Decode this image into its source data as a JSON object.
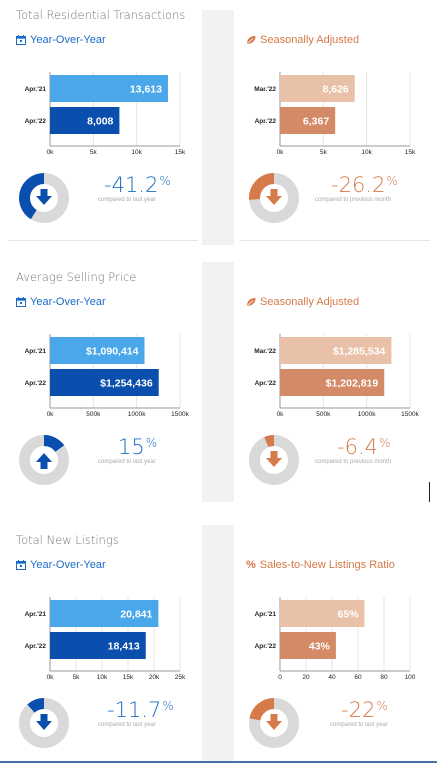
{
  "sections": [
    {
      "title": "Total Residential Transactions",
      "left": {
        "subtitle": "Year-Over-Year",
        "icon": "calendar-icon",
        "chart": {
          "type": "bar",
          "orientation": "horizontal",
          "categories": [
            "Apr.'21",
            "Apr.'22"
          ],
          "values": [
            13613,
            8008
          ],
          "labels": [
            "13,613",
            "8,008"
          ],
          "xticks": [
            "0k",
            "5k",
            "10k",
            "15k"
          ],
          "xlim": [
            0,
            15000
          ]
        },
        "percent": "-41.2",
        "percent_sign": "%",
        "direction": "down",
        "gauge_fraction": 0.412,
        "caption": "compared to last year"
      },
      "right": {
        "subtitle": "Seasonally Adjusted",
        "icon": "leaf-icon",
        "chart": {
          "type": "bar",
          "orientation": "horizontal",
          "categories": [
            "Mar.'22",
            "Apr.'22"
          ],
          "values": [
            8626,
            6367
          ],
          "labels": [
            "8,626",
            "6,367"
          ],
          "xticks": [
            "0k",
            "5k",
            "10k",
            "15k"
          ],
          "xlim": [
            0,
            15000
          ]
        },
        "percent": "-26.2",
        "percent_sign": "%",
        "direction": "down",
        "gauge_fraction": 0.262,
        "caption": "compared to previous month"
      }
    },
    {
      "title": "Average Selling Price",
      "left": {
        "subtitle": "Year-Over-Year",
        "icon": "calendar-icon",
        "chart": {
          "type": "bar",
          "orientation": "horizontal",
          "categories": [
            "Apr.'21",
            "Apr.'22"
          ],
          "values": [
            1090414,
            1254436
          ],
          "labels": [
            "$1,090,414",
            "$1,254,436"
          ],
          "xticks": [
            "0k",
            "500k",
            "1000k",
            "1500k"
          ],
          "xlim": [
            0,
            1500000
          ]
        },
        "percent": "15",
        "percent_sign": "%",
        "direction": "up",
        "gauge_fraction": 0.15,
        "caption": "compared to last year"
      },
      "right": {
        "subtitle": "Seasonally Adjusted",
        "icon": "leaf-icon",
        "chart": {
          "type": "bar",
          "orientation": "horizontal",
          "categories": [
            "Mar.'22",
            "Apr.'22"
          ],
          "values": [
            1285534,
            1202819
          ],
          "labels": [
            "$1,285,534",
            "$1,202,819"
          ],
          "xticks": [
            "0k",
            "500k",
            "1000k",
            "1500k"
          ],
          "xlim": [
            0,
            1500000
          ]
        },
        "percent": "-6.4",
        "percent_sign": "%",
        "direction": "down",
        "gauge_fraction": 0.064,
        "caption": "compared to previous month"
      }
    },
    {
      "title": "Total New Listings",
      "left": {
        "subtitle": "Year-Over-Year",
        "icon": "calendar-icon",
        "chart": {
          "type": "bar",
          "orientation": "horizontal",
          "categories": [
            "Apr.'21",
            "Apr.'22"
          ],
          "values": [
            20841,
            18413
          ],
          "labels": [
            "20,841",
            "18,413"
          ],
          "xticks": [
            "0k",
            "5k",
            "10k",
            "15k",
            "20k",
            "25k"
          ],
          "xlim": [
            0,
            25000
          ]
        },
        "percent": "-11.7",
        "percent_sign": "%",
        "direction": "down",
        "gauge_fraction": 0.117,
        "caption": "compared to last year"
      },
      "right": {
        "subtitle": "Sales-to-New Listings Ratio",
        "icon": "percent-icon",
        "chart": {
          "type": "bar",
          "orientation": "horizontal",
          "categories": [
            "Apr.'21",
            "Apr.'22"
          ],
          "values": [
            65,
            43
          ],
          "labels": [
            "65%",
            "43%"
          ],
          "xticks": [
            "0",
            "20",
            "40",
            "60",
            "80",
            "100"
          ],
          "xlim": [
            0,
            100
          ]
        },
        "percent": "-22",
        "percent_sign": "%",
        "direction": "down",
        "gauge_fraction": 0.22,
        "caption": "compared to last year"
      }
    }
  ],
  "colors": {
    "blue_dark": "#0a4fae",
    "blue_light": "#4aa8ea",
    "blue_text": "#1a6cc6",
    "orange_dark": "#d48a66",
    "orange_light": "#e9c0a8",
    "orange_text": "#d67a4a",
    "gauge_bg": "#d9d9d9"
  },
  "chart_data": [
    {
      "type": "bar",
      "title": "Total Residential Transactions",
      "subtitle": "Year-Over-Year",
      "categories": [
        "Apr.'21",
        "Apr.'22"
      ],
      "values": [
        13613,
        8008
      ],
      "xlim": [
        0,
        15000
      ]
    },
    {
      "type": "bar",
      "title": "Total Residential Transactions",
      "subtitle": "Seasonally Adjusted",
      "categories": [
        "Mar.'22",
        "Apr.'22"
      ],
      "values": [
        8626,
        6367
      ],
      "xlim": [
        0,
        15000
      ]
    },
    {
      "type": "bar",
      "title": "Average Selling Price",
      "subtitle": "Year-Over-Year",
      "categories": [
        "Apr.'21",
        "Apr.'22"
      ],
      "values": [
        1090414,
        1254436
      ],
      "xlim": [
        0,
        1500000
      ]
    },
    {
      "type": "bar",
      "title": "Average Selling Price",
      "subtitle": "Seasonally Adjusted",
      "categories": [
        "Mar.'22",
        "Apr.'22"
      ],
      "values": [
        1285534,
        1202819
      ],
      "xlim": [
        0,
        1500000
      ]
    },
    {
      "type": "bar",
      "title": "Total New Listings",
      "subtitle": "Year-Over-Year",
      "categories": [
        "Apr.'21",
        "Apr.'22"
      ],
      "values": [
        20841,
        18413
      ],
      "xlim": [
        0,
        25000
      ]
    },
    {
      "type": "bar",
      "title": "Total New Listings",
      "subtitle": "Sales-to-New Listings Ratio",
      "categories": [
        "Apr.'21",
        "Apr.'22"
      ],
      "values": [
        65,
        43
      ],
      "xlim": [
        0,
        100
      ]
    }
  ]
}
